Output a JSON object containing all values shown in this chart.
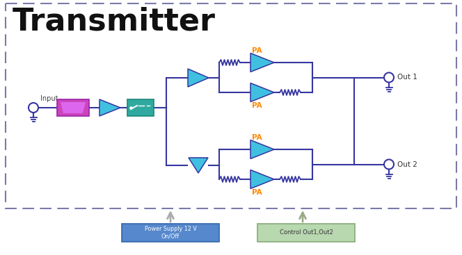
{
  "title": "Transmitter",
  "bg_color": "#ffffff",
  "border_color": "#7a7aaa",
  "title_color": "#111111",
  "title_fontsize": 32,
  "pa_color": "#ff8800",
  "line_color": "#3535a0",
  "amp_color": "#40c0e0",
  "filter_color": "#cc44bb",
  "switch_color": "#30aaa0",
  "out1_label": "Out 1",
  "out2_label": "Out 2",
  "input_label": "Input",
  "ps_label": "Power Supply 12 V\nOn/Off",
  "ctrl_label": "Control Out1,Out2",
  "ps_box_color": "#5588cc",
  "ctrl_box_color": "#b8d8b0"
}
